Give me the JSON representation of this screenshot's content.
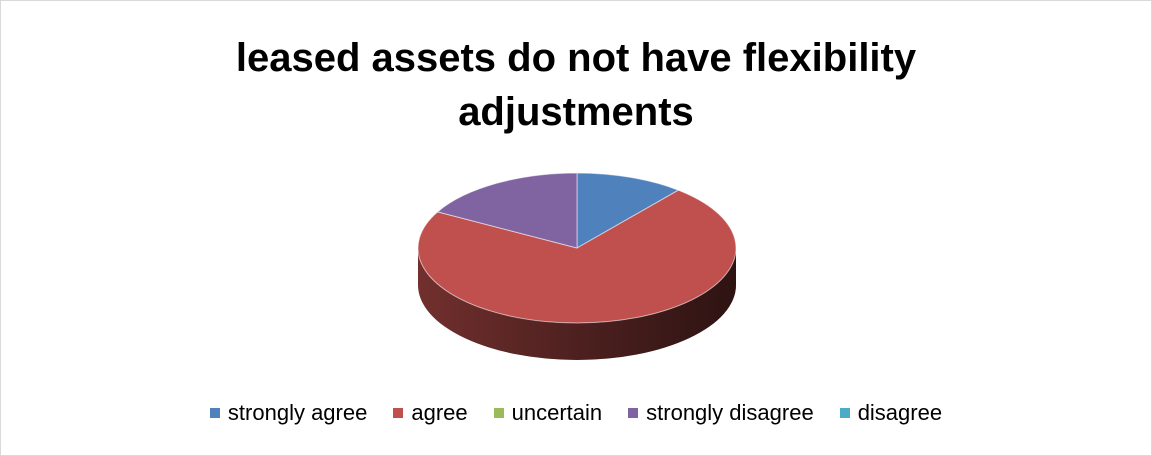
{
  "chart_data": {
    "type": "pie",
    "title": "leased assets do not have flexibility adjustments",
    "title_lines": [
      "leased assets do not have flexibility",
      "adjustments"
    ],
    "series": [
      {
        "label": "strongly agree",
        "value": 11,
        "color": "#4F81BD"
      },
      {
        "label": "agree",
        "value": 72,
        "color": "#C0504D"
      },
      {
        "label": "uncertain",
        "value": 0,
        "color": "#9BBB59"
      },
      {
        "label": "strongly disagree",
        "value": 17,
        "color": "#8064A2"
      },
      {
        "label": "disagree",
        "value": 0,
        "color": "#4BACC6"
      }
    ],
    "legend_position": "bottom",
    "style": "3d-pie"
  }
}
